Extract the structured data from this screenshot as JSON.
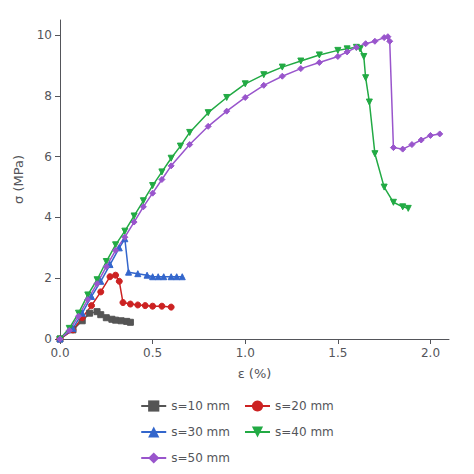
{
  "chart_data": {
    "type": "line",
    "xlabel": "ε (%)",
    "ylabel": "σ (MPa)",
    "xlim": [
      0.0,
      2.1
    ],
    "ylim": [
      0,
      10.5
    ],
    "xticks": [
      {
        "value": 0.0,
        "label": "0.0"
      },
      0.5,
      {
        "value": 1.0,
        "label": "1.0"
      },
      1.5,
      {
        "value": 2.0,
        "label": "2.0"
      }
    ],
    "yticks": [
      0,
      2,
      4,
      6,
      8,
      10
    ],
    "grid": false,
    "legend": "bottom",
    "series": [
      {
        "name": "s=10 mm",
        "color": "#555555",
        "marker": "square",
        "x": [
          0.0,
          0.07,
          0.12,
          0.16,
          0.2,
          0.22,
          0.25,
          0.28,
          0.3,
          0.33,
          0.36,
          0.38
        ],
        "values": [
          0.0,
          0.3,
          0.6,
          0.85,
          0.9,
          0.8,
          0.7,
          0.65,
          0.62,
          0.6,
          0.58,
          0.55
        ]
      },
      {
        "name": "s=20 mm",
        "color": "#cc2222",
        "marker": "circle",
        "x": [
          0.0,
          0.07,
          0.12,
          0.17,
          0.22,
          0.27,
          0.3,
          0.32,
          0.34,
          0.38,
          0.42,
          0.46,
          0.5,
          0.55,
          0.6
        ],
        "values": [
          0.0,
          0.3,
          0.7,
          1.1,
          1.55,
          2.05,
          2.1,
          1.9,
          1.2,
          1.15,
          1.12,
          1.1,
          1.08,
          1.08,
          1.05
        ]
      },
      {
        "name": "s=30 mm",
        "color": "#3366cc",
        "marker": "triangle-up",
        "x": [
          0.0,
          0.07,
          0.12,
          0.17,
          0.22,
          0.27,
          0.32,
          0.35,
          0.37,
          0.42,
          0.47,
          0.5,
          0.53,
          0.56,
          0.6,
          0.63,
          0.66
        ],
        "values": [
          0.0,
          0.35,
          0.85,
          1.4,
          1.9,
          2.45,
          3.0,
          3.3,
          2.2,
          2.15,
          2.1,
          2.05,
          2.05,
          2.05,
          2.05,
          2.05,
          2.05
        ]
      },
      {
        "name": "s=40 mm",
        "color": "#22aa44",
        "marker": "triangle-down",
        "x": [
          0.0,
          0.05,
          0.1,
          0.15,
          0.2,
          0.25,
          0.3,
          0.35,
          0.4,
          0.45,
          0.5,
          0.55,
          0.6,
          0.65,
          0.7,
          0.8,
          0.9,
          1.0,
          1.1,
          1.2,
          1.3,
          1.4,
          1.5,
          1.55,
          1.6,
          1.62,
          1.64,
          1.65,
          1.67,
          1.7,
          1.75,
          1.8,
          1.85,
          1.88
        ],
        "values": [
          0.0,
          0.35,
          0.85,
          1.45,
          1.95,
          2.55,
          3.1,
          3.55,
          4.05,
          4.55,
          5.05,
          5.5,
          5.95,
          6.35,
          6.8,
          7.45,
          7.95,
          8.4,
          8.7,
          8.95,
          9.15,
          9.35,
          9.5,
          9.55,
          9.6,
          9.55,
          9.3,
          8.6,
          7.8,
          6.1,
          5.0,
          4.5,
          4.35,
          4.3
        ]
      },
      {
        "name": "s=50 mm",
        "color": "#9955cc",
        "marker": "diamond",
        "x": [
          0.0,
          0.05,
          0.1,
          0.15,
          0.2,
          0.25,
          0.3,
          0.35,
          0.4,
          0.45,
          0.5,
          0.55,
          0.6,
          0.7,
          0.8,
          0.9,
          1.0,
          1.1,
          1.2,
          1.3,
          1.4,
          1.5,
          1.55,
          1.6,
          1.65,
          1.7,
          1.75,
          1.77,
          1.78,
          1.8,
          1.85,
          1.9,
          1.95,
          2.0,
          2.05
        ],
        "values": [
          0.0,
          0.28,
          0.75,
          1.3,
          1.82,
          2.38,
          2.92,
          3.35,
          3.85,
          4.35,
          4.8,
          5.25,
          5.7,
          6.4,
          7.0,
          7.5,
          7.95,
          8.35,
          8.65,
          8.9,
          9.1,
          9.3,
          9.45,
          9.6,
          9.72,
          9.8,
          9.92,
          9.95,
          9.8,
          6.3,
          6.25,
          6.4,
          6.55,
          6.7,
          6.75
        ]
      }
    ]
  }
}
